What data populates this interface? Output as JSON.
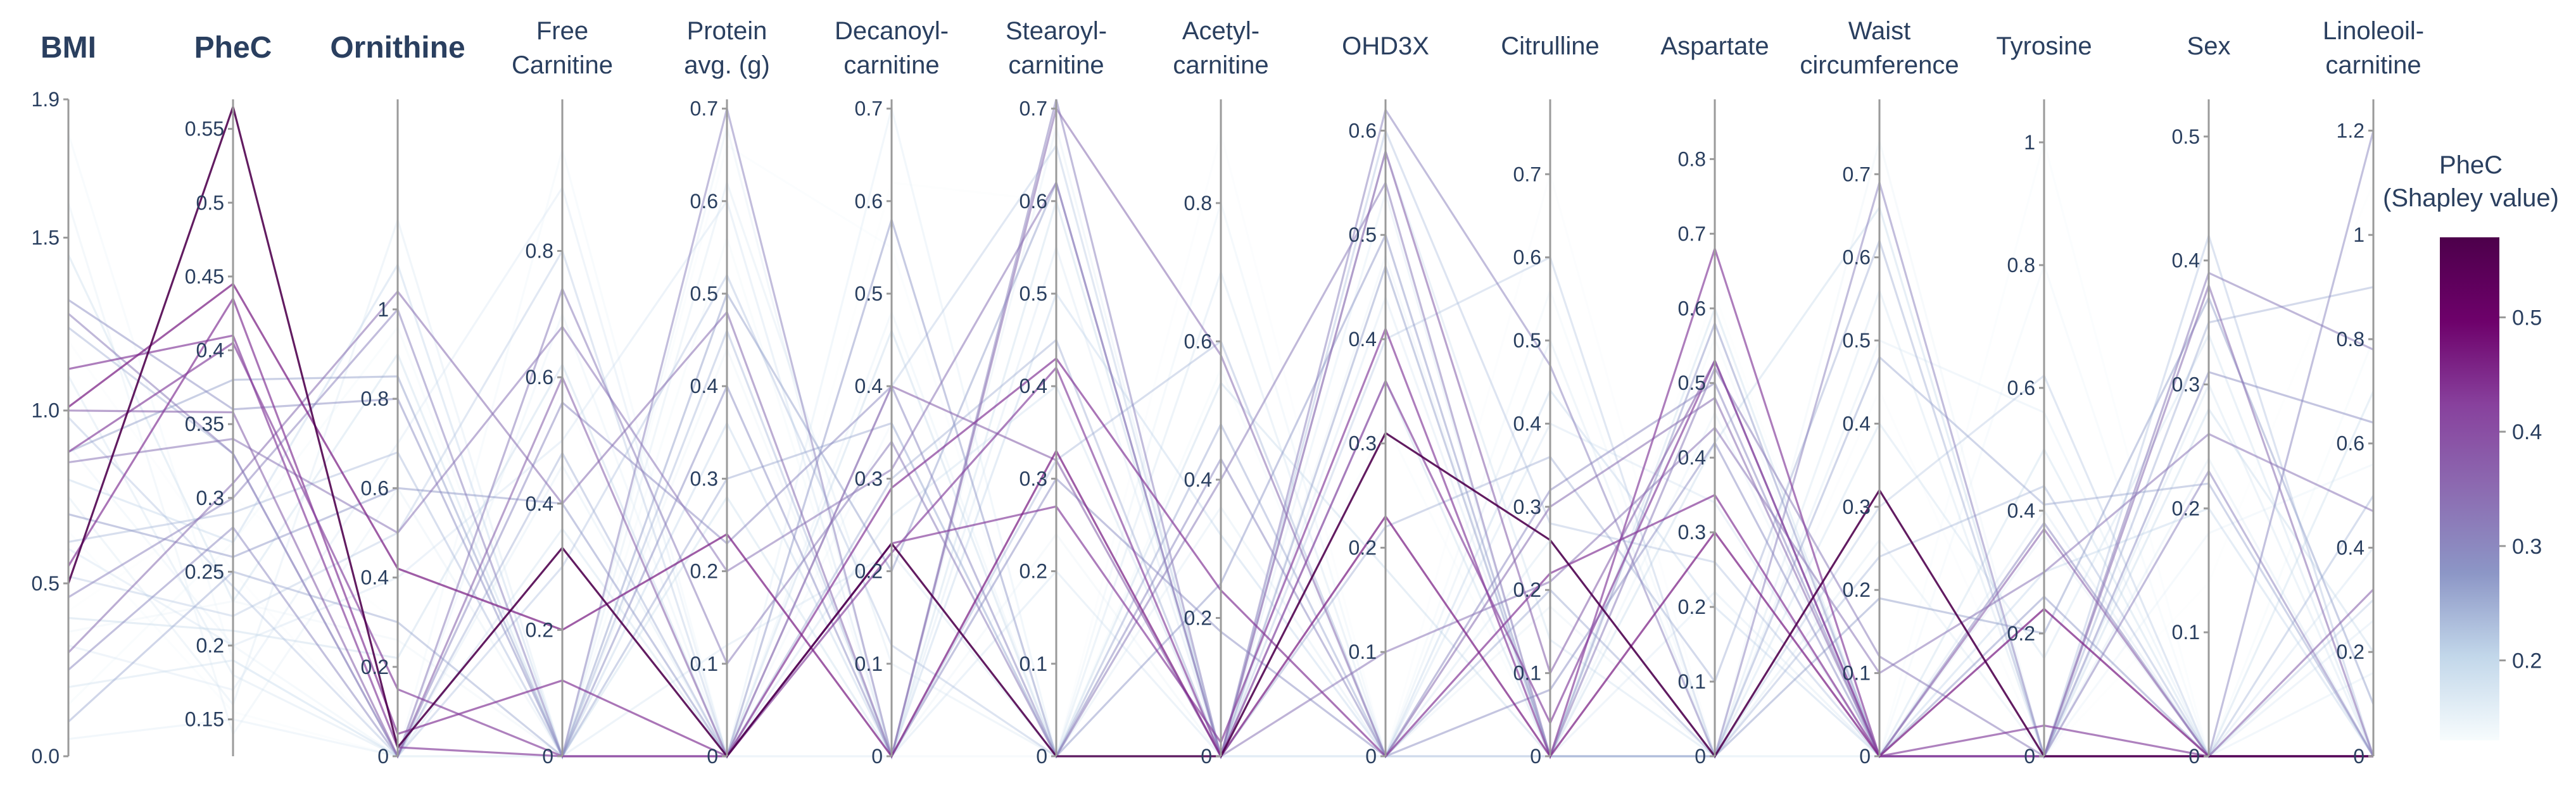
{
  "chart_data": {
    "type": "parallel_coordinates",
    "color_by": "PheC",
    "colorbar": {
      "title": [
        "PheC",
        "(Shapley value)"
      ],
      "range": [
        0.13,
        0.57
      ],
      "ticks": [
        0.2,
        0.3,
        0.4,
        0.5
      ],
      "tick_labels": [
        "0.2",
        "0.3",
        "0.4",
        "0.5"
      ],
      "colorscale": [
        "#f7fcfd",
        "#c2d7ea",
        "#8c96c6",
        "#8c6bb1",
        "#88419d",
        "#6e016b",
        "#4d004b"
      ]
    },
    "axes": [
      {
        "key": "bmi",
        "title": [
          "BMI"
        ],
        "bold": true,
        "range": [
          0,
          1.9
        ],
        "ticks": [
          0,
          0.5,
          1,
          1.5,
          1.9
        ],
        "tick_labels": [
          "0.0",
          "0.5",
          "1.0",
          "1.5",
          "1.9"
        ],
        "label_side": "left"
      },
      {
        "key": "phec",
        "title": [
          "PheC"
        ],
        "bold": true,
        "range": [
          0.125,
          0.57
        ],
        "ticks": [
          0.15,
          0.2,
          0.25,
          0.3,
          0.35,
          0.4,
          0.45,
          0.5,
          0.55
        ],
        "tick_labels": [
          "0.15",
          "0.2",
          "0.25",
          "0.3",
          "0.35",
          "0.4",
          "0.45",
          "0.5",
          "0.55"
        ]
      },
      {
        "key": "ornithine",
        "title": [
          "Ornithine"
        ],
        "bold": true,
        "range": [
          0,
          1.47
        ],
        "ticks": [
          0,
          0.2,
          0.4,
          0.6,
          0.8,
          1
        ],
        "tick_labels": [
          "0",
          "0.2",
          "0.4",
          "0.6",
          "0.8",
          "1"
        ]
      },
      {
        "key": "free_carnitine",
        "title": [
          "Free",
          "Carnitine"
        ],
        "bold": false,
        "range": [
          0,
          1.04
        ],
        "ticks": [
          0,
          0.2,
          0.4,
          0.6,
          0.8
        ],
        "tick_labels": [
          "0",
          "0.2",
          "0.4",
          "0.6",
          "0.8"
        ]
      },
      {
        "key": "protein",
        "title": [
          "Protein",
          "avg. (g)"
        ],
        "bold": false,
        "range": [
          0,
          0.71
        ],
        "ticks": [
          0,
          0.1,
          0.2,
          0.3,
          0.4,
          0.5,
          0.6,
          0.7
        ],
        "tick_labels": [
          "0",
          "0.1",
          "0.2",
          "0.3",
          "0.4",
          "0.5",
          "0.6",
          "0.7"
        ]
      },
      {
        "key": "decanoyl",
        "title": [
          "Decanoyl-",
          "carnitine"
        ],
        "bold": false,
        "range": [
          0,
          0.71
        ],
        "ticks": [
          0,
          0.1,
          0.2,
          0.3,
          0.4,
          0.5,
          0.6,
          0.7
        ],
        "tick_labels": [
          "0",
          "0.1",
          "0.2",
          "0.3",
          "0.4",
          "0.5",
          "0.6",
          "0.7"
        ]
      },
      {
        "key": "stearoyl",
        "title": [
          "Stearoyl-",
          "carnitine"
        ],
        "bold": false,
        "range": [
          0,
          0.71
        ],
        "ticks": [
          0,
          0.1,
          0.2,
          0.3,
          0.4,
          0.5,
          0.6,
          0.7
        ],
        "tick_labels": [
          "0",
          "0.1",
          "0.2",
          "0.3",
          "0.4",
          "0.5",
          "0.6",
          "0.7"
        ]
      },
      {
        "key": "acetyl",
        "title": [
          "Acetyl-",
          "carnitine"
        ],
        "bold": false,
        "range": [
          0,
          0.95
        ],
        "ticks": [
          0,
          0.2,
          0.4,
          0.6,
          0.8
        ],
        "tick_labels": [
          "0",
          "0.2",
          "0.4",
          "0.6",
          "0.8"
        ]
      },
      {
        "key": "ohd3x",
        "title": [
          "OHD3X"
        ],
        "bold": false,
        "range": [
          0,
          0.63
        ],
        "ticks": [
          0,
          0.1,
          0.2,
          0.3,
          0.4,
          0.5,
          0.6
        ],
        "tick_labels": [
          "0",
          "0.1",
          "0.2",
          "0.3",
          "0.4",
          "0.5",
          "0.6"
        ]
      },
      {
        "key": "citrulline",
        "title": [
          "Citrulline"
        ],
        "bold": false,
        "range": [
          0,
          0.79
        ],
        "ticks": [
          0,
          0.1,
          0.2,
          0.3,
          0.4,
          0.5,
          0.6,
          0.7
        ],
        "tick_labels": [
          "0",
          "0.1",
          "0.2",
          "0.3",
          "0.4",
          "0.5",
          "0.6",
          "0.7"
        ]
      },
      {
        "key": "aspartate",
        "title": [
          "Aspartate"
        ],
        "bold": false,
        "range": [
          0,
          0.88
        ],
        "ticks": [
          0,
          0.1,
          0.2,
          0.3,
          0.4,
          0.5,
          0.6,
          0.7,
          0.8
        ],
        "tick_labels": [
          "0",
          "0.1",
          "0.2",
          "0.3",
          "0.4",
          "0.5",
          "0.6",
          "0.7",
          "0.8"
        ]
      },
      {
        "key": "waist",
        "title": [
          "Waist",
          "circumference"
        ],
        "bold": false,
        "range": [
          0,
          0.79
        ],
        "ticks": [
          0,
          0.1,
          0.2,
          0.3,
          0.4,
          0.5,
          0.6,
          0.7
        ],
        "tick_labels": [
          "0",
          "0.1",
          "0.2",
          "0.3",
          "0.4",
          "0.5",
          "0.6",
          "0.7"
        ]
      },
      {
        "key": "tyrosine",
        "title": [
          "Tyrosine"
        ],
        "bold": false,
        "range": [
          0,
          1.07
        ],
        "ticks": [
          0,
          0.2,
          0.4,
          0.6,
          0.8,
          1
        ],
        "tick_labels": [
          "0",
          "0.2",
          "0.4",
          "0.6",
          "0.8",
          "1"
        ]
      },
      {
        "key": "sex",
        "title": [
          "Sex"
        ],
        "bold": false,
        "range": [
          0,
          0.53
        ],
        "ticks": [
          0,
          0.1,
          0.2,
          0.3,
          0.4,
          0.5
        ],
        "tick_labels": [
          "0",
          "0.1",
          "0.2",
          "0.3",
          "0.4",
          "0.5"
        ]
      },
      {
        "key": "linoleoil",
        "title": [
          "Linoleoil-",
          "carnitine"
        ],
        "bold": false,
        "range": [
          0,
          1.26
        ],
        "ticks": [
          0,
          0.2,
          0.4,
          0.6,
          0.8,
          1,
          1.2
        ],
        "tick_labels": [
          "0",
          "0.2",
          "0.4",
          "0.6",
          "0.8",
          "1",
          "1.2"
        ]
      }
    ],
    "lines": [
      {
        "c": 0.565,
        "v": [
          0.5,
          0.565,
          0.02,
          0.33,
          0.0,
          0.23,
          0.0,
          0.0,
          0.31,
          0.26,
          0.0,
          0.32,
          0.0,
          0.0,
          0.0
        ]
      },
      {
        "c": 0.455,
        "v": [
          1.01,
          0.445,
          0.42,
          0.2,
          0.24,
          0.0,
          0.33,
          0.0,
          0.23,
          0.0,
          0.3,
          0.0,
          0.24,
          0.0,
          0.0
        ]
      },
      {
        "c": 0.43,
        "v": [
          0.55,
          0.435,
          0.05,
          0.12,
          0.0,
          0.29,
          0.43,
          0.24,
          0.0,
          0.22,
          0.35,
          0.0,
          0.0,
          0.0,
          0.0
        ]
      },
      {
        "c": 0.42,
        "v": [
          1.12,
          0.41,
          0.02,
          0.0,
          0.0,
          0.23,
          0.27,
          0.02,
          0.41,
          0.0,
          0.68,
          0.0,
          0.0,
          0.0,
          0.0
        ]
      },
      {
        "c": 0.415,
        "v": [
          0.88,
          0.405,
          0.15,
          0.0,
          0.0,
          0.22,
          0.42,
          0.0,
          0.36,
          0.04,
          0.53,
          0.0,
          0.05,
          0.0,
          0.0
        ]
      },
      {
        "c": 0.36,
        "v": [
          1.0,
          0.358,
          0.0,
          0.6,
          0.0,
          0.4,
          0.32,
          0.0,
          0.58,
          0.1,
          0.53,
          0.0,
          0.37,
          0.0,
          0.32
        ]
      },
      {
        "c": 0.34,
        "v": [
          0.3,
          0.31,
          1.04,
          0.4,
          0.48,
          0.0,
          0.7,
          0.58,
          0.0,
          0.3,
          0.48,
          0.0,
          0.0,
          0.38,
          0.0
        ]
      },
      {
        "c": 0.33,
        "v": [
          0.85,
          0.34,
          0.5,
          0.68,
          0.2,
          0.31,
          0.62,
          0.0,
          0.1,
          0.21,
          0.44,
          0.1,
          0.3,
          0.26,
          0.47
        ]
      },
      {
        "c": 0.32,
        "v": [
          1.28,
          0.33,
          0.0,
          0.74,
          0.1,
          0.34,
          0.0,
          0.4,
          0.55,
          0.0,
          0.52,
          0.12,
          0.0,
          0.39,
          0.78
        ]
      },
      {
        "c": 0.31,
        "v": [
          0.46,
          0.3,
          1.0,
          0.0,
          0.7,
          0.0,
          0.71,
          0.0,
          0.62,
          0.47,
          0.0,
          0.69,
          0.0,
          0.23,
          0.0
        ]
      },
      {
        "c": 0.3,
        "v": [
          0.25,
          0.28,
          0.0,
          0.56,
          0.23,
          0.4,
          0.0,
          0.43,
          0.0,
          0.32,
          0.5,
          0.0,
          0.38,
          0.0,
          1.2
        ]
      },
      {
        "c": 0.29,
        "v": [
          1.32,
          0.36,
          0.8,
          0.0,
          0.4,
          0.0,
          0.3,
          0.18,
          0.0,
          0.08,
          0.42,
          0.0,
          0.0,
          0.31,
          0.64
        ]
      },
      {
        "c": 0.28,
        "v": [
          0.7,
          0.26,
          0.6,
          0.4,
          0.0,
          0.58,
          0.0,
          0.25,
          0.5,
          0.0,
          0.58,
          0.0,
          0.26,
          0.0,
          0.0
        ]
      },
      {
        "c": 0.27,
        "v": [
          0.88,
          0.38,
          0.85,
          0.0,
          0.5,
          0.2,
          0.62,
          0.0,
          0.47,
          0.0,
          0.0,
          0.19,
          0.2,
          0.37,
          0.1
        ]
      },
      {
        "c": 0.26,
        "v": [
          0.1,
          0.25,
          0.3,
          0.0,
          0.3,
          0.36,
          0.0,
          0.48,
          0.0,
          0.2,
          0.0,
          0.48,
          0.41,
          0.22,
          0.0
        ]
      },
      {
        "c": 0.25,
        "v": [
          1.24,
          0.33,
          0.0,
          0.48,
          0.0,
          0.3,
          0.45,
          0.0,
          0.22,
          0.36,
          0.1,
          0.62,
          0.0,
          0.35,
          0.9
        ]
      },
      {
        "c": 0.24,
        "v": [
          0.62,
          0.29,
          0.68,
          0.0,
          0.46,
          0.0,
          0.32,
          0.6,
          0.0,
          0.0,
          0.0,
          0.24,
          0.44,
          0.0,
          0.5
        ]
      },
      {
        "c": 0.23,
        "v": [
          0.98,
          0.24,
          0.0,
          0.3,
          0.52,
          0.12,
          0.0,
          0.0,
          0.6,
          0.28,
          0.26,
          0.0,
          0.0,
          0.42,
          0.0
        ]
      },
      {
        "c": 0.22,
        "v": [
          0.52,
          0.22,
          0.5,
          0.8,
          0.0,
          0.4,
          0.66,
          0.0,
          0.4,
          0.6,
          0.0,
          0.3,
          0.62,
          0.0,
          0.3
        ]
      },
      {
        "c": 0.21,
        "v": [
          0.8,
          0.27,
          1.1,
          0.0,
          0.36,
          0.0,
          0.5,
          0.32,
          0.0,
          0.44,
          0.2,
          0.0,
          0.3,
          0.2,
          0.0
        ]
      },
      {
        "c": 0.205,
        "v": [
          0.4,
          0.21,
          0.22,
          0.62,
          0.0,
          0.46,
          0.0,
          0.54,
          0.18,
          0.0,
          0.42,
          0.66,
          0.0,
          0.28,
          0.2
        ]
      },
      {
        "c": 0.2,
        "v": [
          1.45,
          0.23,
          0.9,
          0.0,
          0.28,
          0.0,
          0.6,
          0.0,
          0.36,
          0.0,
          0.6,
          0.0,
          0.5,
          0.0,
          0.7
        ]
      },
      {
        "c": 0.195,
        "v": [
          0.2,
          0.19,
          0.0,
          0.36,
          0.0,
          0.26,
          0.4,
          0.0,
          0.58,
          0.14,
          0.0,
          0.4,
          0.16,
          0.34,
          0.0
        ]
      },
      {
        "c": 0.19,
        "v": [
          0.6,
          0.2,
          0.4,
          0.5,
          0.6,
          0.0,
          0.2,
          0.0,
          0.0,
          0.4,
          0.34,
          0.0,
          0.0,
          0.0,
          0.4
        ]
      },
      {
        "c": 0.185,
        "v": [
          1.1,
          0.18,
          0.0,
          0.0,
          0.12,
          0.22,
          0.0,
          0.7,
          0.0,
          0.26,
          0.0,
          0.56,
          0.0,
          0.3,
          0.0
        ]
      },
      {
        "c": 0.18,
        "v": [
          0.32,
          0.17,
          0.7,
          0.9,
          0.0,
          0.0,
          0.55,
          0.0,
          0.44,
          0.0,
          0.22,
          0.0,
          0.4,
          0.0,
          0.26
        ]
      },
      {
        "c": 0.175,
        "v": [
          0.75,
          0.16,
          1.2,
          0.0,
          0.62,
          0.1,
          0.0,
          0.36,
          0.0,
          0.5,
          0.0,
          0.26,
          0.0,
          0.24,
          0.0
        ]
      },
      {
        "c": 0.17,
        "v": [
          0.05,
          0.15,
          0.0,
          0.46,
          0.0,
          0.7,
          0.0,
          0.0,
          0.54,
          0.0,
          0.0,
          0.5,
          0.56,
          0.0,
          0.16
        ]
      },
      {
        "c": 0.165,
        "v": [
          1.6,
          0.14,
          0.6,
          0.0,
          0.68,
          0.0,
          0.68,
          0.0,
          0.0,
          0.18,
          0.0,
          0.0,
          0.36,
          0.0,
          0.0
        ]
      },
      {
        "c": 0.16,
        "v": [
          0.9,
          0.2,
          0.0,
          0.7,
          0.0,
          0.48,
          0.0,
          0.8,
          0.0,
          0.0,
          0.46,
          0.0,
          0.0,
          0.18,
          0.56
        ]
      },
      {
        "c": 0.155,
        "v": [
          0.36,
          0.23,
          0.26,
          0.0,
          0.44,
          0.0,
          0.24,
          0.0,
          0.48,
          0.0,
          0.0,
          0.74,
          0.0,
          0.0,
          0.0
        ]
      },
      {
        "c": 0.15,
        "v": [
          1.8,
          0.19,
          0.0,
          0.96,
          0.0,
          0.36,
          0.0,
          0.0,
          0.0,
          0.56,
          0.0,
          0.0,
          0.8,
          0.0,
          0.0
        ]
      },
      {
        "c": 0.145,
        "v": [
          0.15,
          0.27,
          0.96,
          0.0,
          0.56,
          0.0,
          0.0,
          0.56,
          0.0,
          0.0,
          0.56,
          0.0,
          0.0,
          0.0,
          0.8
        ]
      },
      {
        "c": 0.14,
        "v": [
          0.65,
          0.155,
          0.0,
          0.0,
          0.66,
          0.55,
          0.0,
          0.0,
          0.32,
          0.0,
          0.0,
          0.0,
          1.0,
          0.0,
          0.0
        ]
      },
      {
        "c": 0.135,
        "v": [
          1.2,
          0.25,
          0.0,
          0.58,
          0.0,
          0.0,
          0.0,
          0.9,
          0.0,
          0.7,
          0.0,
          0.44,
          0.0,
          0.0,
          0.0
        ]
      },
      {
        "c": 0.13,
        "v": [
          0.42,
          0.3,
          0.3,
          0.0,
          0.0,
          0.62,
          0.6,
          0.0,
          0.0,
          0.0,
          0.62,
          0.0,
          0.0,
          0.14,
          1.1
        ]
      }
    ]
  }
}
